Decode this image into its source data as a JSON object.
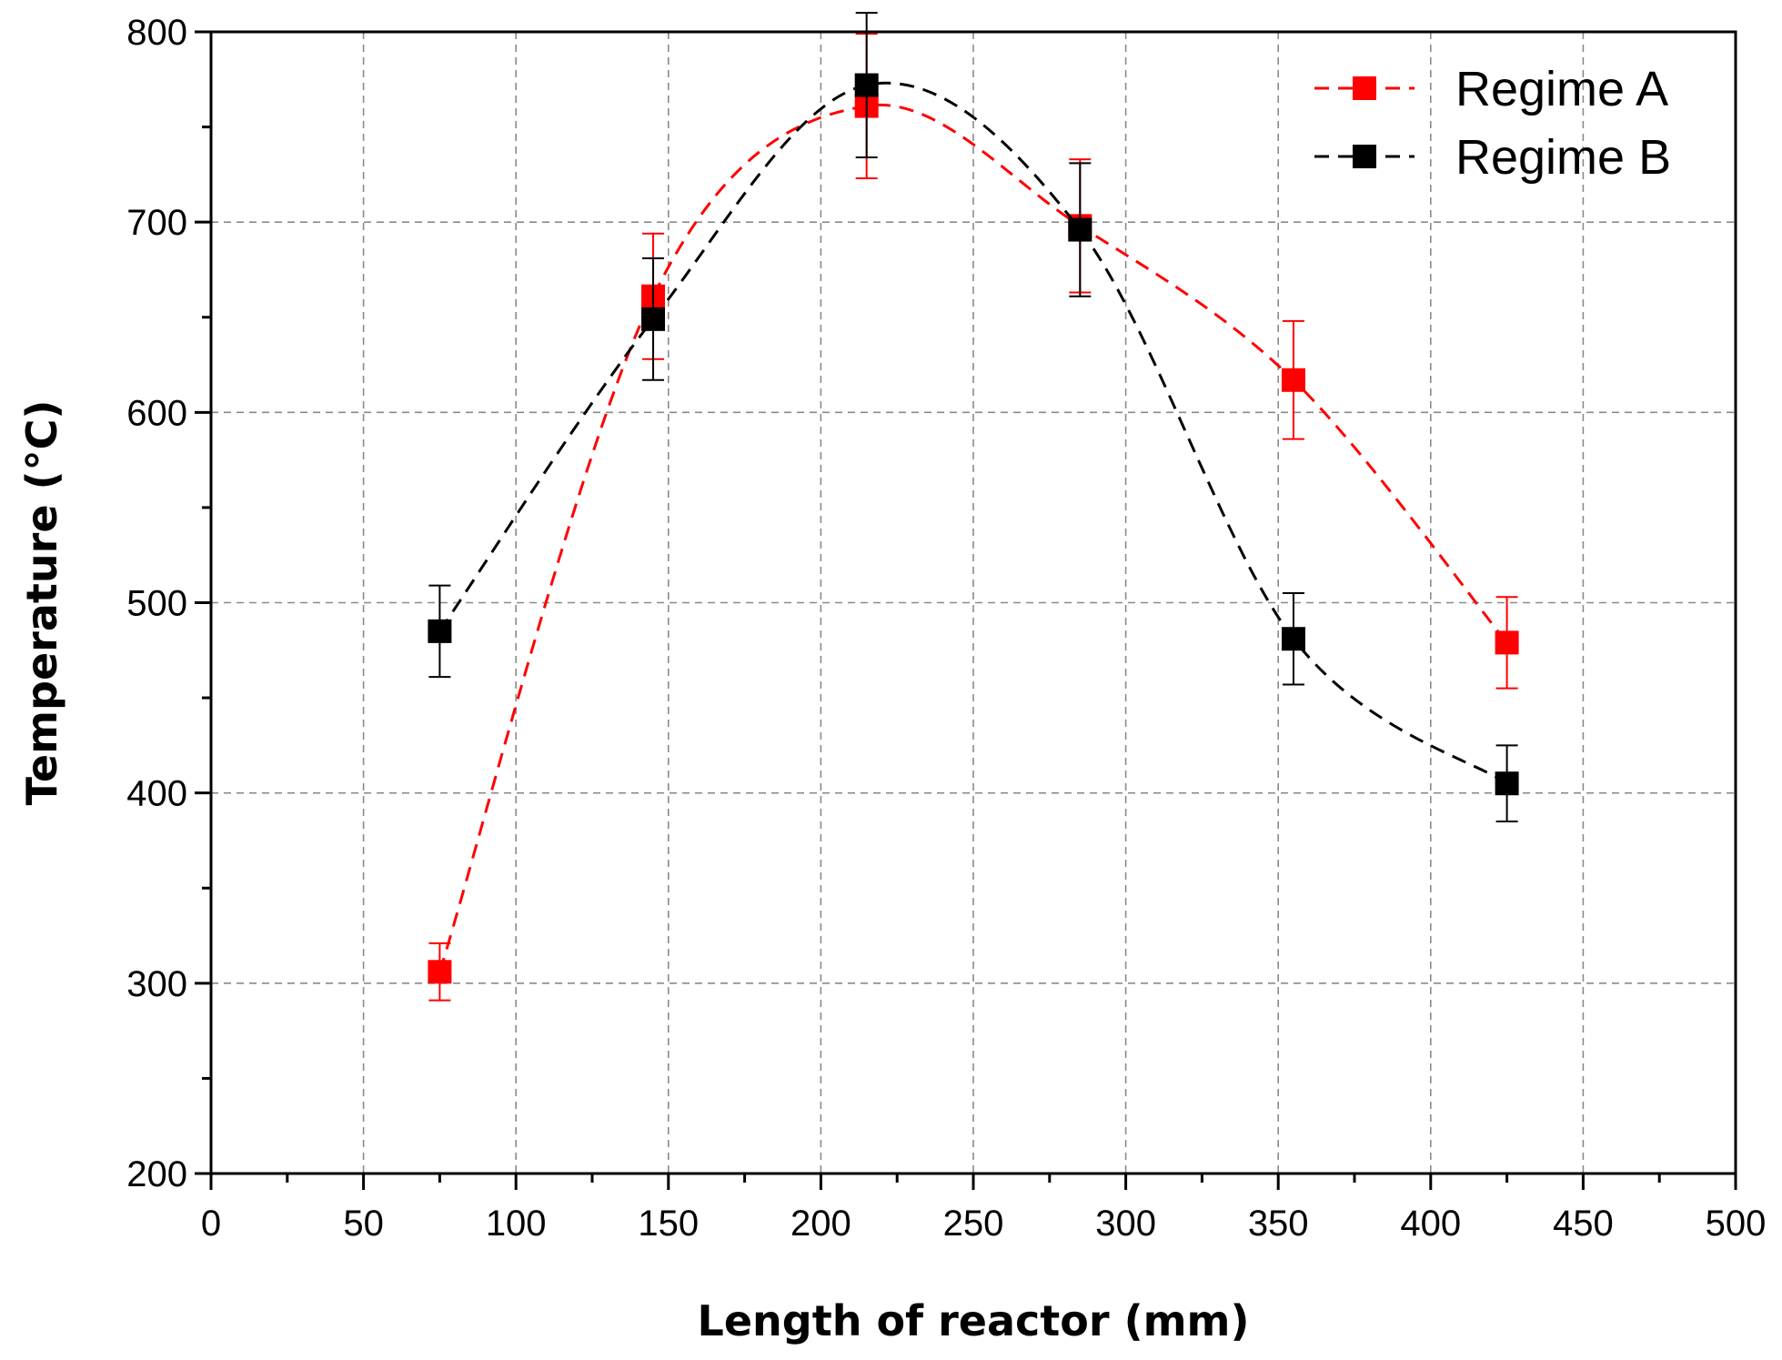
{
  "chart_data": {
    "type": "scatter",
    "title": "",
    "xlabel": "Length of reactor (mm)",
    "ylabel": "Temperature (°C)",
    "xlim": [
      0,
      500
    ],
    "ylim": [
      200,
      800
    ],
    "xticks": [
      0,
      50,
      100,
      150,
      200,
      250,
      300,
      350,
      400,
      450,
      500
    ],
    "yticks": [
      200,
      300,
      400,
      500,
      600,
      700,
      800
    ],
    "xtick_labels": [
      "0",
      "50",
      "100",
      "150",
      "200",
      "250",
      "300",
      "350",
      "400",
      "450",
      "500"
    ],
    "ytick_labels": [
      "200",
      "300",
      "400",
      "500",
      "600",
      "700",
      "800"
    ],
    "grid": true,
    "legend_position": "top-right",
    "series": [
      {
        "name": "Regime A",
        "color": "#ff0000",
        "line_style": "dashed spline fit",
        "marker": "square",
        "points": [
          {
            "x": 75,
            "y": 306,
            "err": 15
          },
          {
            "x": 145,
            "y": 661,
            "err": 33
          },
          {
            "x": 215,
            "y": 761,
            "err": 38
          },
          {
            "x": 285,
            "y": 698,
            "err": 35
          },
          {
            "x": 355,
            "y": 617,
            "err": 31
          },
          {
            "x": 425,
            "y": 479,
            "err": 24
          }
        ]
      },
      {
        "name": "Regime B",
        "color": "#000000",
        "line_style": "dashed spline fit",
        "marker": "square",
        "points": [
          {
            "x": 75,
            "y": 485,
            "err": 24
          },
          {
            "x": 145,
            "y": 649,
            "err": 32
          },
          {
            "x": 215,
            "y": 772,
            "err": 38
          },
          {
            "x": 285,
            "y": 696,
            "err": 35
          },
          {
            "x": 355,
            "y": 481,
            "err": 24
          },
          {
            "x": 425,
            "y": 405,
            "err": 20
          }
        ]
      }
    ]
  }
}
